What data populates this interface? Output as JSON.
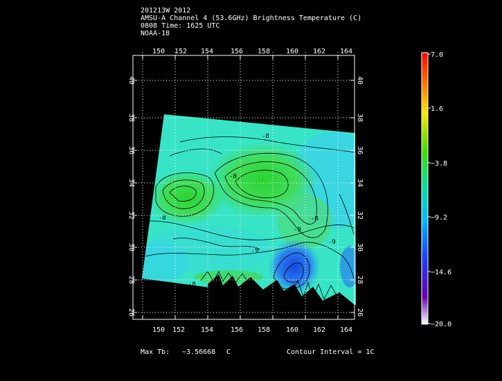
{
  "header": {
    "storm_id": "201213W 2012",
    "product": "AMSU-A Channel 4 (53.6GHz) Brightness Temperature (C)",
    "time": "0808 Time: 1625 UTC",
    "satellite": "NOAA-18"
  },
  "map": {
    "lon_ticks": [
      "150",
      "152",
      "154",
      "156",
      "158",
      "160",
      "162",
      "164"
    ],
    "lat_ticks": [
      "26",
      "28",
      "30",
      "32",
      "34",
      "36",
      "38",
      "40"
    ],
    "contour_labels": [
      "-8",
      "-8",
      "-8",
      "-8",
      "-9",
      "-9",
      "-9",
      "-8"
    ],
    "colors": {
      "warm_core": "#2cd640",
      "background_field": "#37e8c8",
      "cold": "#1a5be8",
      "frame": "#ffffff"
    }
  },
  "colorbar": {
    "labels": [
      "7.0",
      "1.6",
      "−3.8",
      "−9.2",
      "−14.6",
      "−20.0"
    ],
    "colors": [
      "#ff0000",
      "#ff8800",
      "#ffee00",
      "#33dd00",
      "#00e0a0",
      "#00b4ff",
      "#0030ff",
      "#5a00b0",
      "#ffffff"
    ]
  },
  "footer": {
    "max_tb_label": "Max Tb:",
    "max_tb_value": "−3.56668",
    "max_tb_unit": "C",
    "contour_interval": "Contour Interval = 1C"
  }
}
